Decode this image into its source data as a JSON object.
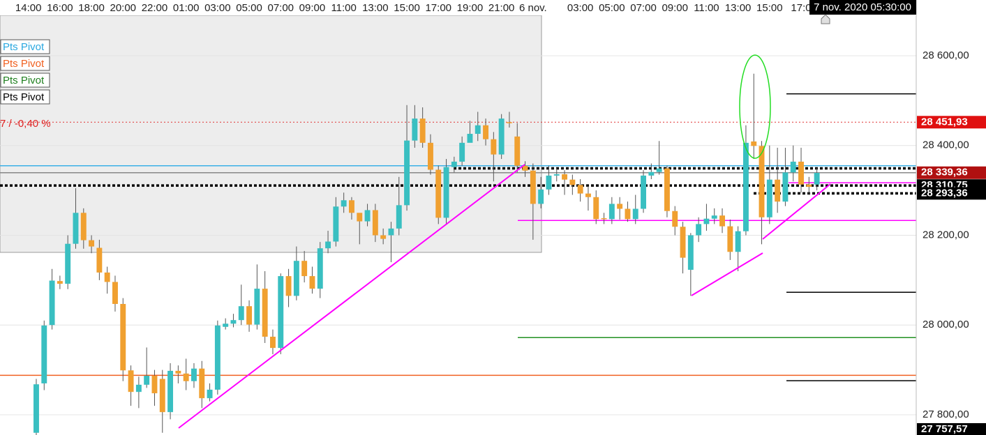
{
  "chart_data": {
    "type": "candlestick",
    "up_color": "#39bfc1",
    "down_color": "#f0a030",
    "wick_color": "#555555",
    "xlim": [
      -4.6,
      111.6
    ],
    "ylim": [
      27755,
      28690
    ],
    "grid": true,
    "xticks": [
      {
        "value": -1,
        "label": "14:00"
      },
      {
        "value": 3,
        "label": "16:00"
      },
      {
        "value": 7,
        "label": "18:00"
      },
      {
        "value": 11,
        "label": "20:00"
      },
      {
        "value": 15,
        "label": "22:00"
      },
      {
        "value": 19,
        "label": "01:00"
      },
      {
        "value": 23,
        "label": "03:00"
      },
      {
        "value": 27,
        "label": "05:00"
      },
      {
        "value": 31,
        "label": "07:00"
      },
      {
        "value": 35,
        "label": "09:00"
      },
      {
        "value": 39,
        "label": "11:00"
      },
      {
        "value": 43,
        "label": "13:00"
      },
      {
        "value": 47,
        "label": "15:00"
      },
      {
        "value": 51,
        "label": "17:00"
      },
      {
        "value": 55,
        "label": "19:00"
      },
      {
        "value": 59,
        "label": "21:00"
      },
      {
        "value": 63,
        "label": "6 nov."
      },
      {
        "value": 69,
        "label": "03:00"
      },
      {
        "value": 73,
        "label": "05:00"
      },
      {
        "value": 77,
        "label": "07:00"
      },
      {
        "value": 81,
        "label": "09:00"
      },
      {
        "value": 85,
        "label": "11:00"
      },
      {
        "value": 89,
        "label": "13:00"
      },
      {
        "value": 93,
        "label": "15:00"
      },
      {
        "value": 97,
        "label": "17:0"
      }
    ],
    "yticks": [
      {
        "value": 27800,
        "label": "27 800,00"
      },
      {
        "value": 28000,
        "label": "28 000,00"
      },
      {
        "value": 28200,
        "label": "28 200,00"
      },
      {
        "value": 28400,
        "label": "28 400,00"
      },
      {
        "value": 28600,
        "label": "28 600,00"
      }
    ],
    "open": [
      27760,
      27870,
      28000,
      28098,
      28092,
      28181,
      28250,
      28189,
      28172,
      28117,
      28096,
      28047,
      27899,
      27851,
      27867,
      27887,
      27880,
      27806,
      27898,
      27892,
      27875,
      27903,
      27837,
      27856,
      27996,
      28003,
      28011,
      28042,
      28001,
      28081,
      27974,
      27949,
      28109,
      28065,
      28143,
      28109,
      28081,
      28171,
      28186,
      28264,
      28278,
      28250,
      28231,
      28256,
      28200,
      28200,
      28215,
      28267,
      28411,
      28460,
      28406,
      28346,
      28239,
      28352,
      28364,
      28406,
      28426,
      28445,
      28414,
      28380,
      28452,
      28420,
      28355,
      28344,
      28270,
      28302,
      28333,
      28336,
      28324,
      28312,
      28293,
      28285,
      28238,
      28236,
      28270,
      28259,
      28236,
      28259,
      28333,
      28341,
      28349,
      28254,
      28219,
      28123,
      28200,
      28225,
      28237,
      28244,
      28220,
      28163,
      28209,
      28409,
      28399,
      28240,
      28324,
      28275,
      28340,
      28364,
      28313,
      28313
    ],
    "high": [
      27880,
      28010,
      28125,
      28110,
      28200,
      28305,
      28260,
      28200,
      28190,
      28130,
      28110,
      28060,
      27910,
      27885,
      27950,
      27900,
      27900,
      27915,
      27910,
      27925,
      27915,
      27920,
      27870,
      28010,
      28015,
      28025,
      28090,
      28055,
      28135,
      28120,
      27990,
      28115,
      28125,
      28175,
      28165,
      28130,
      28185,
      28210,
      28285,
      28295,
      28285,
      28245,
      28270,
      28270,
      28215,
      28230,
      28330,
      28490,
      28490,
      28485,
      28425,
      28355,
      28370,
      28375,
      28420,
      28455,
      28475,
      28460,
      28430,
      28470,
      28475,
      28450,
      28365,
      28360,
      28330,
      28355,
      28350,
      28345,
      28335,
      28325,
      28310,
      28300,
      28250,
      28285,
      28285,
      28275,
      28290,
      28345,
      28360,
      28410,
      28355,
      28265,
      28230,
      28205,
      28240,
      28270,
      28260,
      28260,
      28235,
      28220,
      28445,
      28560,
      28410,
      28400,
      28395,
      28395,
      28400,
      28395,
      28330,
      28350
    ],
    "low": [
      27750,
      27855,
      27990,
      28080,
      28080,
      28170,
      28170,
      28160,
      28100,
      28070,
      28030,
      27875,
      27820,
      27815,
      27860,
      27820,
      27760,
      27790,
      27870,
      27855,
      27860,
      27815,
      27830,
      27845,
      27990,
      27995,
      28000,
      27985,
      27990,
      27960,
      27935,
      27935,
      28040,
      28055,
      28095,
      28070,
      28060,
      28160,
      28175,
      28250,
      28235,
      28180,
      28220,
      28185,
      28180,
      28140,
      28200,
      28255,
      28395,
      28395,
      28335,
      28225,
      28225,
      28340,
      28355,
      28415,
      28410,
      28400,
      28320,
      28370,
      28440,
      28340,
      28330,
      28190,
      28260,
      28290,
      28320,
      28290,
      28290,
      28275,
      28255,
      28225,
      28225,
      28225,
      28235,
      28230,
      28225,
      28250,
      28325,
      28335,
      28240,
      28200,
      28115,
      28065,
      28185,
      28210,
      28225,
      28205,
      28145,
      28120,
      28200,
      28370,
      28180,
      28225,
      28250,
      28265,
      28320,
      28295,
      28290,
      28300
    ],
    "close": [
      27868,
      27999,
      28099,
      28092,
      28181,
      28250,
      28189,
      28175,
      28117,
      28096,
      28047,
      27899,
      27851,
      27867,
      27887,
      27848,
      27806,
      27898,
      27892,
      27875,
      27903,
      27837,
      27856,
      27999,
      28003,
      28011,
      28042,
      28001,
      28081,
      27974,
      27949,
      28109,
      28065,
      28143,
      28109,
      28081,
      28171,
      28186,
      28264,
      28278,
      28250,
      28231,
      28256,
      28200,
      28192,
      28215,
      28267,
      28411,
      28460,
      28406,
      28346,
      28239,
      28352,
      28364,
      28406,
      28426,
      28445,
      28414,
      28380,
      28460,
      28450,
      28355,
      28344,
      28270,
      28302,
      28333,
      28336,
      28324,
      28312,
      28293,
      28285,
      28236,
      28236,
      28270,
      28259,
      28236,
      28259,
      28333,
      28341,
      28349,
      28254,
      28219,
      28150,
      28200,
      28225,
      28237,
      28244,
      28220,
      28163,
      28209,
      28406,
      28399,
      28240,
      28324,
      28275,
      28340,
      28364,
      28313,
      28308,
      28339
    ],
    "levels": [
      {
        "value": 28451.93,
        "label": "28 451,93",
        "color": "#e03030",
        "style": "dotted",
        "label_bg": "#e01010"
      },
      {
        "value": 28355,
        "color": "#3bb0e6"
      },
      {
        "value": 28339.36,
        "label": "28 339,36",
        "color": "#888888",
        "label_bg": "#b01010"
      },
      {
        "value": 28349,
        "color": "#000000",
        "style": "dashed"
      },
      {
        "value": 28310.75,
        "label": "28 310,75",
        "color": "#000000",
        "style": "dashed",
        "label_bg": "#000000"
      },
      {
        "value": 28293.36,
        "label": "28 293,36",
        "color": "#000000",
        "style": "dashed",
        "label_bg": "#000000"
      },
      {
        "value": 28317,
        "color": "#ff00ff"
      },
      {
        "value": 28233,
        "color": "#ff00ff"
      },
      {
        "value": 27972,
        "color": "#209020"
      },
      {
        "value": 27888,
        "color": "#f06020"
      },
      {
        "value": 28515,
        "color": "#000000"
      },
      {
        "value": 28073,
        "color": "#000000"
      },
      {
        "value": 27876,
        "color": "#000000"
      },
      {
        "value": 27757.57,
        "label": "27 757,57",
        "label_bg": "#000000"
      }
    ],
    "legend": [
      {
        "name": "Pts Pivot",
        "color": "#2aa8e0"
      },
      {
        "name": "Pts Pivot",
        "color": "#f06020"
      },
      {
        "name": "Pts Pivot",
        "color": "#208020"
      },
      {
        "name": "Pts Pivot",
        "color": "#000000"
      }
    ],
    "annotation": "7 / -0,40 %",
    "crosshair_label": "7 nov. 2020 05:30:00"
  }
}
